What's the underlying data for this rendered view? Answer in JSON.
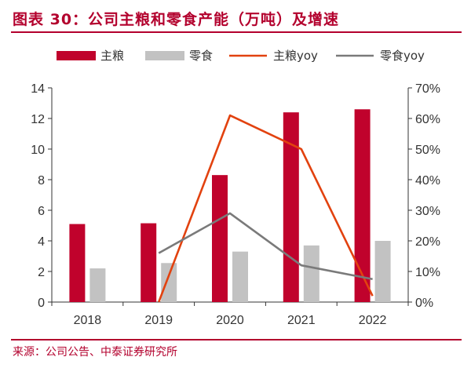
{
  "header": {
    "title": "图表 30：公司主粮和零食产能（万吨）及增速"
  },
  "footer": {
    "source": "来源：公司公告、中泰证券研究所"
  },
  "colors": {
    "accent": "#b3002d",
    "staple": "#c0022c",
    "snack": "#c2c2c2",
    "staple_line": "#e2420f",
    "snack_line": "#7a7a7a",
    "axis": "#333333"
  },
  "chart_data": {
    "type": "bar",
    "title": "图表 30：公司主粮和零食产能（万吨）及增速",
    "categories": [
      "2018",
      "2019",
      "2020",
      "2021",
      "2022"
    ],
    "series": [
      {
        "name": "主粮",
        "type": "bar",
        "axis": "left",
        "values": [
          5.1,
          5.15,
          8.3,
          12.4,
          12.6
        ]
      },
      {
        "name": "零食",
        "type": "bar",
        "axis": "left",
        "values": [
          2.2,
          2.55,
          3.3,
          3.7,
          4.0
        ]
      },
      {
        "name": "主粮yoy",
        "type": "line",
        "axis": "right",
        "values": [
          null,
          0.0,
          0.61,
          0.5,
          0.02
        ]
      },
      {
        "name": "零食yoy",
        "type": "line",
        "axis": "right",
        "values": [
          null,
          0.16,
          0.29,
          0.12,
          0.075
        ]
      }
    ],
    "left_axis": {
      "ylim": [
        0,
        14
      ],
      "ticks": [
        "0",
        "2",
        "4",
        "6",
        "8",
        "10",
        "12",
        "14"
      ]
    },
    "right_axis": {
      "ylim": [
        0,
        0.7
      ],
      "ticks": [
        "0%",
        "10%",
        "20%",
        "30%",
        "40%",
        "50%",
        "60%",
        "70%"
      ]
    },
    "legend": {
      "position": "top",
      "labels": [
        "主粮",
        "零食",
        "主粮yoy",
        "零食yoy"
      ]
    },
    "grid": false
  }
}
